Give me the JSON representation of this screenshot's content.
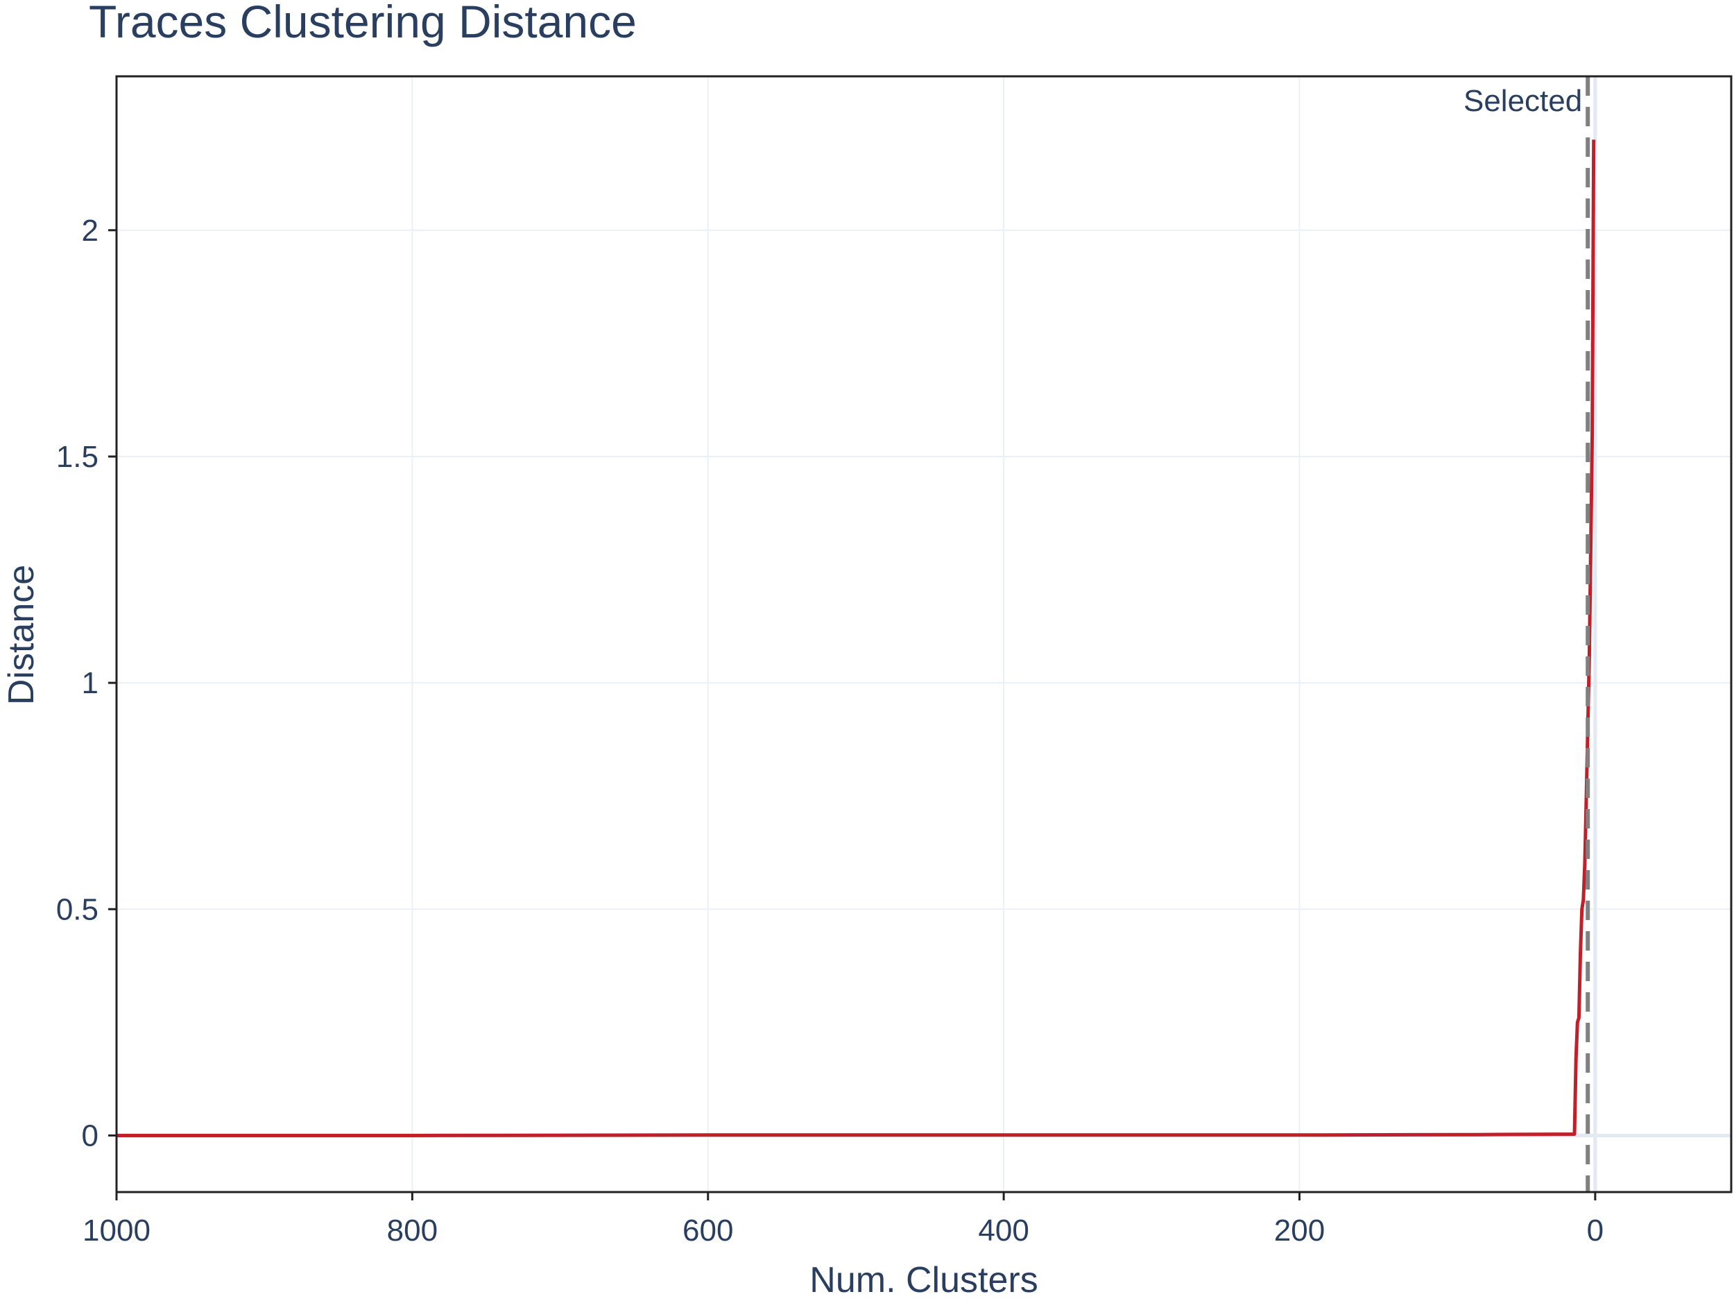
{
  "chart_data": {
    "type": "line",
    "title": "Traces Clustering Distance",
    "xlabel": "Num. Clusters",
    "ylabel": "Distance",
    "x_reversed": true,
    "xlim": [
      1000,
      -92
    ],
    "ylim": [
      -0.125,
      2.34
    ],
    "x_ticks": [
      1000,
      800,
      600,
      400,
      200,
      0
    ],
    "x_tick_labels": [
      "1000",
      "800",
      "600",
      "400",
      "200",
      "0"
    ],
    "y_ticks": [
      0,
      0.5,
      1,
      1.5,
      2
    ],
    "y_tick_labels": [
      "0",
      "0.5",
      "1",
      "1.5",
      "2"
    ],
    "grid": true,
    "series": [
      {
        "color": "#c0202a",
        "x": [
          1000,
          800,
          600,
          400,
          200,
          80,
          14,
          13,
          12,
          11,
          10,
          9,
          8,
          7,
          6,
          5,
          4,
          3,
          2,
          1
        ],
        "y": [
          0.0,
          0.0,
          0.001,
          0.001,
          0.001,
          0.002,
          0.003,
          0.17,
          0.25,
          0.26,
          0.4,
          0.5,
          0.52,
          0.6,
          0.75,
          0.9,
          1.05,
          1.3,
          1.55,
          2.2
        ]
      }
    ],
    "vline": {
      "x": 5,
      "label": "Selected",
      "color": "#808080",
      "dash": "dashed"
    }
  }
}
